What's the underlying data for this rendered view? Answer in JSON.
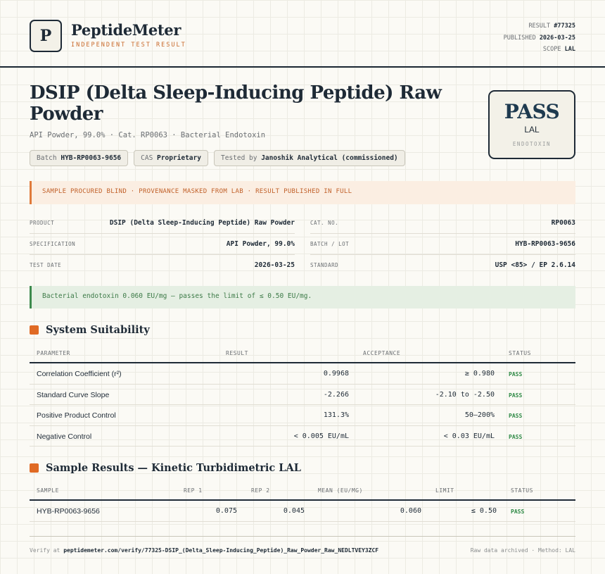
{
  "brand": {
    "logo_letter": "P",
    "name": "PeptideMeter",
    "tagline": "INDEPENDENT TEST RESULT"
  },
  "meta": {
    "result_label": "RESULT",
    "result_value": "#77325",
    "published_label": "PUBLISHED",
    "published_value": "2026-03-25",
    "scope_label": "SCOPE",
    "scope_value": "LAL"
  },
  "title": "DSIP (Delta Sleep-Inducing Peptide) Raw Powder",
  "subtitle": "API Powder, 99.0% · Cat. RP0063 · Bacterial Endotoxin",
  "chips": {
    "batch_label": "Batch",
    "batch_value": "HYB-RP0063-9656",
    "cas_label": "CAS",
    "cas_value": "Proprietary",
    "tested_label": "Tested by",
    "tested_value": "Janoshik Analytical (commissioned)"
  },
  "stamp": {
    "verdict": "PASS",
    "method": "LAL",
    "footer": "ENDOTOXIN"
  },
  "notice": "SAMPLE PROCURED BLIND · PROVENANCE MASKED FROM LAB · RESULT PUBLISHED IN FULL",
  "info": {
    "left": [
      {
        "label": "PRODUCT",
        "value": "DSIP (Delta Sleep-Inducing Peptide) Raw Powder"
      },
      {
        "label": "SPECIFICATION",
        "value": "API Powder, 99.0%"
      },
      {
        "label": "TEST DATE",
        "value": "2026-03-25"
      }
    ],
    "right": [
      {
        "label": "CAT. NO.",
        "value": "RP0063"
      },
      {
        "label": "BATCH / LOT",
        "value": "HYB-RP0063-9656"
      },
      {
        "label": "STANDARD",
        "value": "USP <85> / EP 2.6.14"
      }
    ]
  },
  "verdict_text": "Bacterial endotoxin 0.060 EU/mg — passes the limit of ≤ 0.50 EU/mg.",
  "suitability": {
    "title": "System Suitability",
    "headers": [
      "PARAMETER",
      "RESULT",
      "ACCEPTANCE",
      "STATUS"
    ],
    "rows": [
      {
        "parameter": "Correlation Coefficient (r²)",
        "result": "0.9968",
        "acceptance": "≥ 0.980",
        "status": "PASS"
      },
      {
        "parameter": "Standard Curve Slope",
        "result": "-2.266",
        "acceptance": "-2.10 to -2.50",
        "status": "PASS"
      },
      {
        "parameter": "Positive Product Control",
        "result": "131.3%",
        "acceptance": "50–200%",
        "status": "PASS"
      },
      {
        "parameter": "Negative Control",
        "result": "< 0.005 EU/mL",
        "acceptance": "< 0.03 EU/mL",
        "status": "PASS"
      }
    ]
  },
  "samples": {
    "title": "Sample Results — Kinetic Turbidimetric LAL",
    "headers": [
      "SAMPLE",
      "REP 1",
      "REP 2",
      "MEAN (EU/MG)",
      "LIMIT",
      "STATUS"
    ],
    "rows": [
      {
        "sample": "HYB-RP0063-9656",
        "rep1": "0.075",
        "rep2": "0.045",
        "mean": "0.060",
        "limit": "≤ 0.50",
        "status": "PASS"
      }
    ]
  },
  "footer": {
    "verify_label": "Verify at",
    "verify_url": "peptidemeter.com/verify/77325-DSIP_(Delta_Sleep-Inducing_Peptide)_Raw_Powder_Raw_NEDLTVEY3ZCF",
    "right": "Raw data archived · Method: LAL"
  },
  "colors": {
    "accent": "#e06a24",
    "pass": "#2f8a46",
    "ink": "#1e2a36"
  }
}
